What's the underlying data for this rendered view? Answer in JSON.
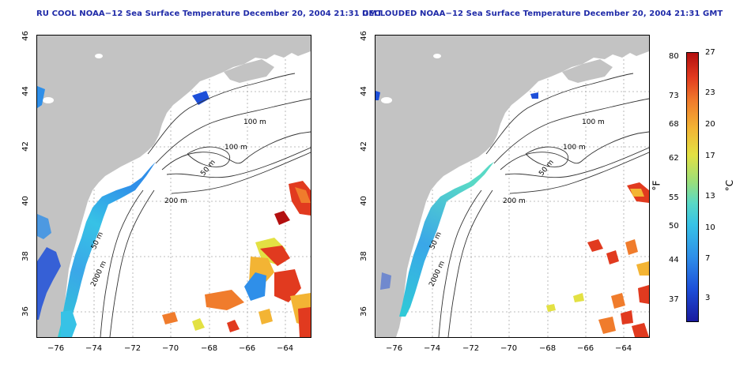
{
  "left_panel": {
    "title": "RU COOL NOAA−12 Sea Surface Temperature December 20, 2004 21:31 GMT"
  },
  "right_panel": {
    "title": "DECLOUDED NOAA−12 Sea Surface Temperature December 20, 2004 21:31 GMT"
  },
  "axes": {
    "lon_ticks": [
      "−76",
      "−74",
      "−72",
      "−70",
      "−68",
      "−66",
      "−64"
    ],
    "lat_ticks": [
      "46",
      "44",
      "42",
      "40",
      "38",
      "36"
    ]
  },
  "contours": {
    "label_100_a": "100 m",
    "label_100_b": "100 m",
    "label_50": "50 m",
    "label_200": "200 m",
    "label_50_shelf": "50 m",
    "label_2000": "2000 m"
  },
  "colorbar": {
    "fahrenheit_ticks": [
      "80",
      "73",
      "68",
      "62",
      "55",
      "50",
      "44",
      "37"
    ],
    "celsius_ticks": [
      "27",
      "23",
      "20",
      "17",
      "13",
      "10",
      "7",
      "3"
    ],
    "fahrenheit_unit": "°F",
    "celsius_unit": "°C",
    "colors": [
      "#1a1a9e",
      "#1d4fd9",
      "#2f8fe9",
      "#37c2e6",
      "#59d9c6",
      "#9bdf7a",
      "#e3e143",
      "#f3b434",
      "#f07c2c",
      "#e13a1f",
      "#b30f0f"
    ]
  },
  "colors": {
    "land": "#c3c3c3",
    "title": "#1f2aa8",
    "grid": "#a8a8a8"
  }
}
